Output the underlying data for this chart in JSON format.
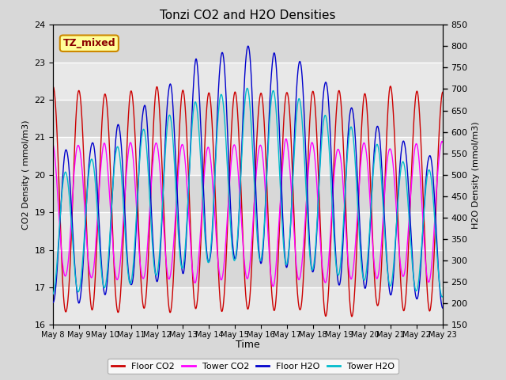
{
  "title": "Tonzi CO2 and H2O Densities",
  "xlabel": "Time",
  "ylabel_left": "CO2 Density ( mmol/m3)",
  "ylabel_right": "H2O Density (mmol/m3)",
  "annotation": "TZ_mixed",
  "ylim_left": [
    16.0,
    24.0
  ],
  "ylim_right": [
    150,
    850
  ],
  "x_tick_labels": [
    "May 8",
    "May 9",
    "May 10",
    "May 11",
    "May 12",
    "May 13",
    "May 14",
    "May 15",
    "May 16",
    "May 17",
    "May 18",
    "May 19",
    "May 20",
    "May 21",
    "May 22",
    "May 23"
  ],
  "yticks_left": [
    16.0,
    17.0,
    18.0,
    19.0,
    20.0,
    21.0,
    22.0,
    23.0,
    24.0
  ],
  "yticks_right": [
    150,
    200,
    250,
    300,
    350,
    400,
    450,
    500,
    550,
    600,
    650,
    700,
    750,
    800,
    850
  ],
  "colors": {
    "floor_co2": "#cc0000",
    "tower_co2": "#ff00ff",
    "floor_h2o": "#0000cc",
    "tower_h2o": "#00bbcc"
  },
  "legend": [
    "Floor CO2",
    "Tower CO2",
    "Floor H2O",
    "Tower H2O"
  ],
  "background_color": "#d8d8d8",
  "plot_bg_light": "#e8e8e8",
  "plot_bg_dark": "#d8d8d8",
  "annotation_bg": "#ffff99",
  "annotation_border": "#cc8800",
  "grid_color": "#ffffff",
  "n_points": 1500,
  "linewidth": 1.0
}
